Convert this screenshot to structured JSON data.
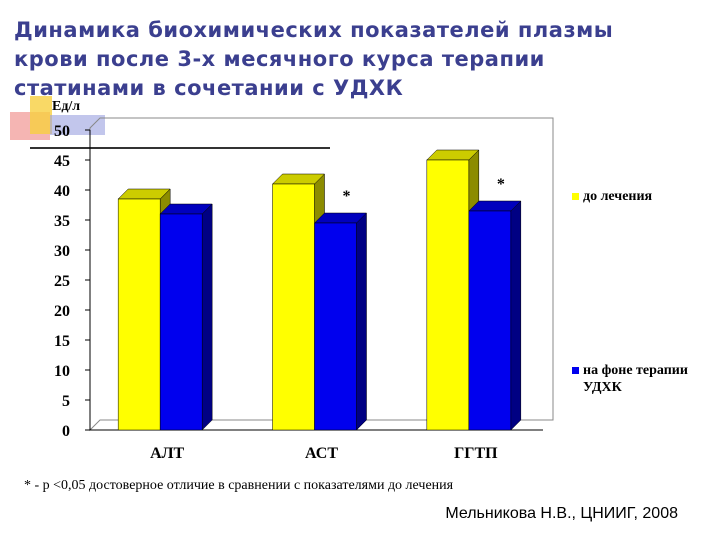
{
  "chart_data": {
    "type": "bar",
    "title": "Динамика биохимических показателей плазмы крови после 3-х месячного курса терапии статинами в сочетании с УДХК",
    "y_label": "Ед/л",
    "categories": [
      "АЛТ",
      "АСТ",
      "ГГТП"
    ],
    "series": [
      {
        "name": "до лечения",
        "color": "#ffff00",
        "values": [
          38.5,
          41,
          45
        ]
      },
      {
        "name": "на фоне терапии УДХК",
        "color": "#0000ee",
        "values": [
          36,
          34.5,
          36.5
        ]
      }
    ],
    "ylim": [
      0,
      50
    ],
    "yticks": [
      0,
      5,
      10,
      15,
      20,
      25,
      30,
      35,
      40,
      45,
      50
    ],
    "grid": false,
    "annotations": [
      {
        "text": "*",
        "category": "АСТ"
      },
      {
        "text": "*",
        "category": "ГГТП"
      }
    ],
    "footnote": "* - p <0,05 достоверное отличие в сравнении с показателями до лечения",
    "source": "Мельникова Н.В., ЦНИИГ, 2008"
  }
}
